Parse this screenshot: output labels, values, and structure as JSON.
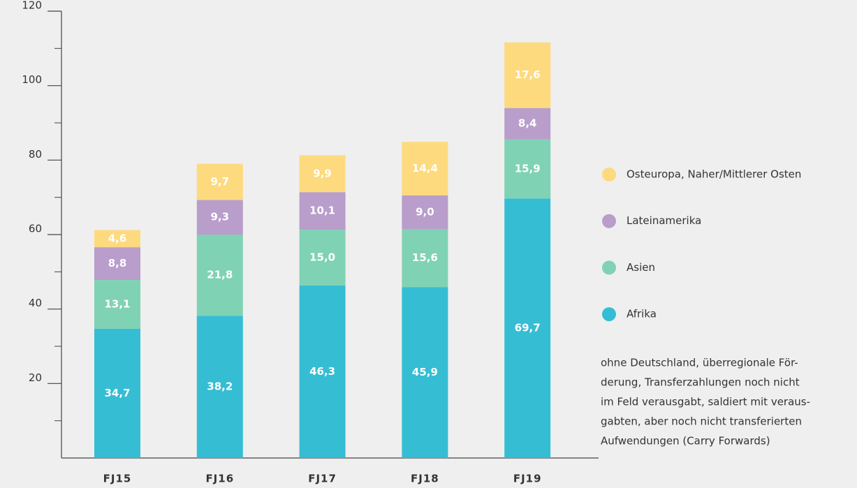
{
  "chart_data": {
    "type": "stacked-bar",
    "categories": [
      "FJ15",
      "FJ16",
      "FJ17",
      "FJ18",
      "FJ19"
    ],
    "series": [
      {
        "name": "Afrika",
        "color": "#35bdd4",
        "values": [
          34.7,
          38.2,
          46.3,
          45.9,
          69.7
        ],
        "value_labels": [
          "34,7",
          "38,2",
          "46,3",
          "45,9",
          "69,7"
        ]
      },
      {
        "name": "Asien",
        "color": "#80d2b5",
        "values": [
          13.1,
          21.8,
          15.0,
          15.6,
          15.9
        ],
        "value_labels": [
          "13,1",
          "21,8",
          "15,0",
          "15,6",
          "15,9"
        ]
      },
      {
        "name": "Lateinamerika",
        "color": "#b99dcb",
        "values": [
          8.8,
          9.3,
          10.1,
          9.0,
          8.4
        ],
        "value_labels": [
          "8,8",
          "9,3",
          "10,1",
          "9,0",
          "8,4"
        ]
      },
      {
        "name": "Osteuropa, Naher/Mittlerer Osten",
        "color": "#fdda7e",
        "values": [
          4.6,
          9.7,
          9.9,
          14.4,
          17.6
        ],
        "value_labels": [
          "4,6",
          "9,7",
          "9,9",
          "14,4",
          "17,6"
        ]
      }
    ],
    "ylim": [
      0,
      120
    ],
    "yticks": [
      20,
      40,
      60,
      80,
      100,
      120
    ],
    "yminorticks": [
      10,
      30,
      50,
      70,
      90,
      110
    ],
    "legend": "right",
    "note": [
      "ohne Deutschland, überregionale För-",
      "derung, Transferzahlungen noch nicht",
      "im Feld verausgabt, saldiert mit veraus-",
      "gabten, aber noch nicht transferierten",
      "Aufwendungen (Carry Forwards)"
    ]
  }
}
